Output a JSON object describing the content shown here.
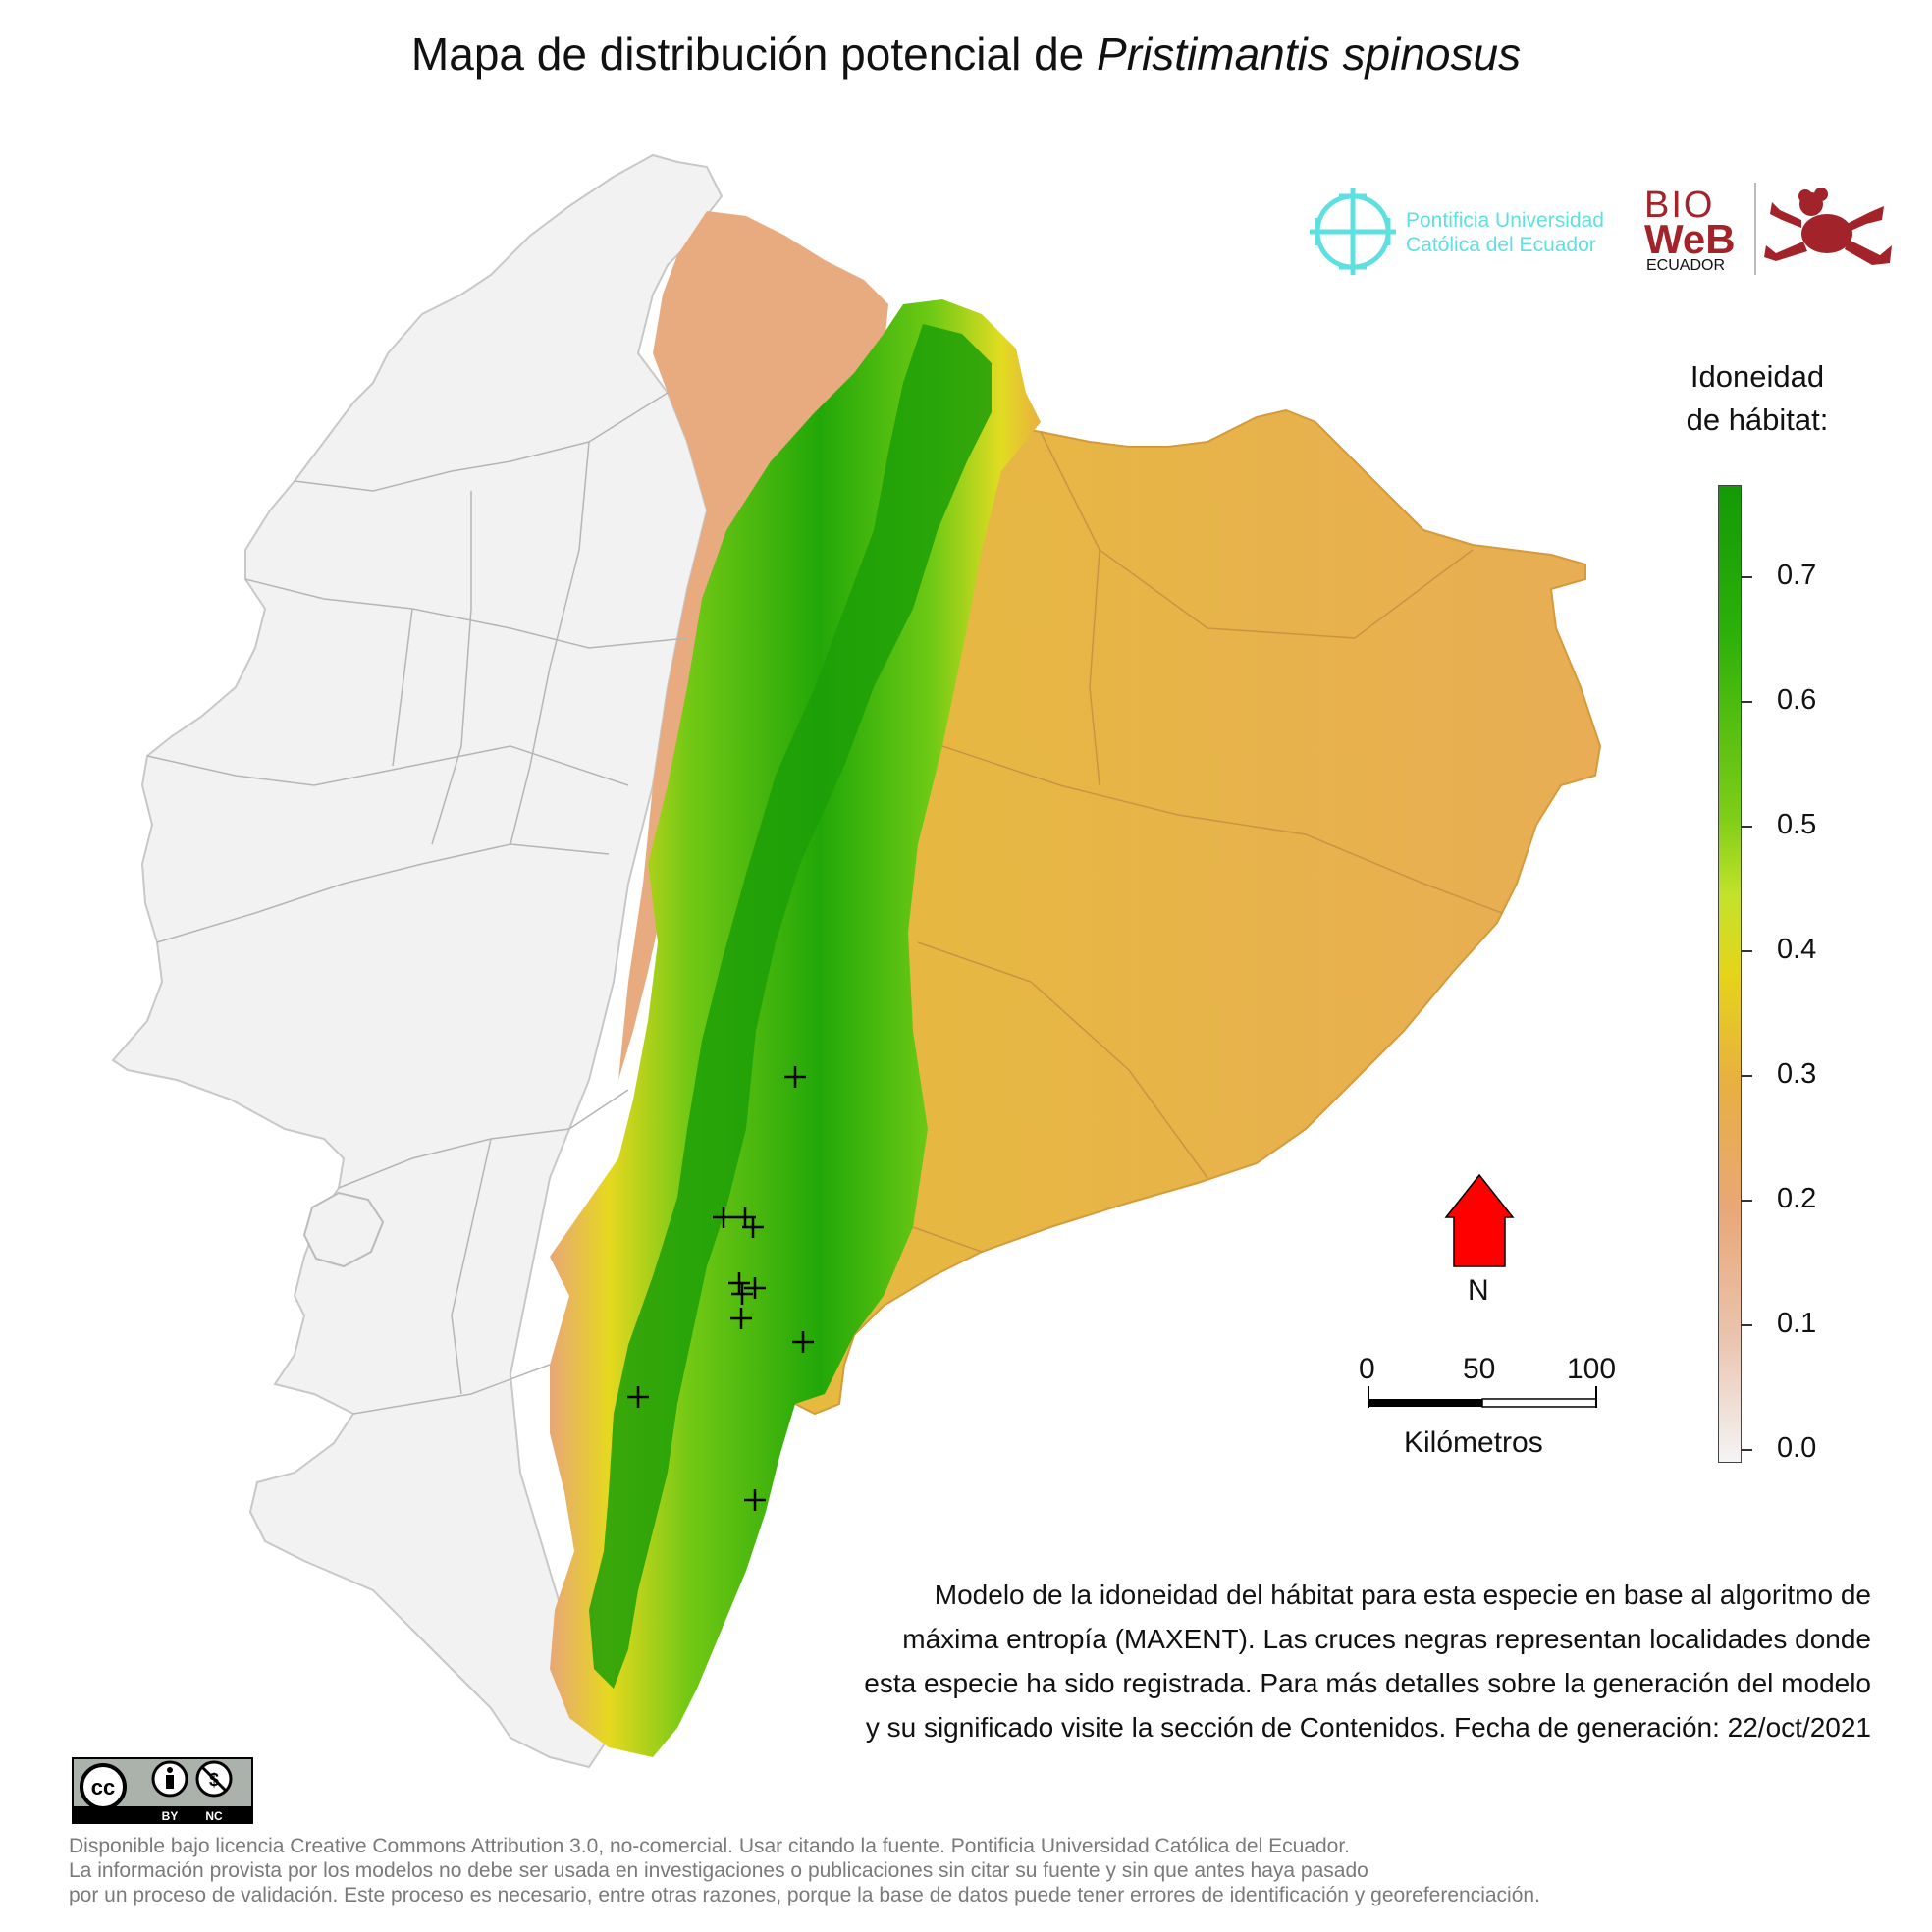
{
  "title": {
    "prefix": "Mapa de distribución potencial de ",
    "species": "Pristimantis spinosus"
  },
  "map": {
    "region": "Ecuador continental",
    "basemap_color": "#f2f2f2",
    "lowland_color": "#e8b040"
  },
  "occurrence_marker": "cross",
  "occurrences_count": 13,
  "logos": {
    "puce": {
      "line1": "Pontificia Universidad",
      "line2": "Católica del Ecuador",
      "color": "#5fe0e0"
    },
    "bioweb": {
      "bio": "BIO",
      "web": "WeB",
      "sub": "ECUADOR",
      "color": "#a3232b",
      "icon": "frog-icon"
    }
  },
  "legend": {
    "title_line1": "Idoneidad",
    "title_line2": "de hábitat:",
    "ticks": [
      "0.7",
      "0.6",
      "0.5",
      "0.4",
      "0.3",
      "0.2",
      "0.1",
      "0.0"
    ],
    "colors": [
      "#f4f4f4",
      "#e9a777",
      "#e8b040",
      "#e5d41a",
      "#7fcd18",
      "#139a06"
    ]
  },
  "north": {
    "label": "N",
    "color": "#ff0000"
  },
  "scale": {
    "labels": [
      "0",
      "50",
      "100"
    ],
    "unit": "Kilómetros"
  },
  "description": [
    "Modelo de la idoneidad del hábitat para esta especie en base al algoritmo de",
    "máxima entropía (MAXENT). Las cruces negras representan localidades donde",
    "esta especie ha sido registrada. Para más detalles sobre la generación del modelo",
    "y su significado visite la sección de Contenidos. Fecha de generación: 22/oct/2021"
  ],
  "license": {
    "badge": {
      "by": "BY",
      "nc": "NC"
    },
    "lines": [
      "Disponible bajo licencia Creative Commons Attribution 3.0, no-comercial. Usar citando la fuente. Pontificia Universidad Católica del Ecuador.",
      "La información provista por los modelos no debe ser usada en investigaciones o publicaciones sin citar su fuente y sin que antes haya pasado",
      "por un proceso de validación. Este proceso es necesario, entre otras razones, porque la base de datos puede tener errores de identificación y georeferenciación."
    ]
  }
}
